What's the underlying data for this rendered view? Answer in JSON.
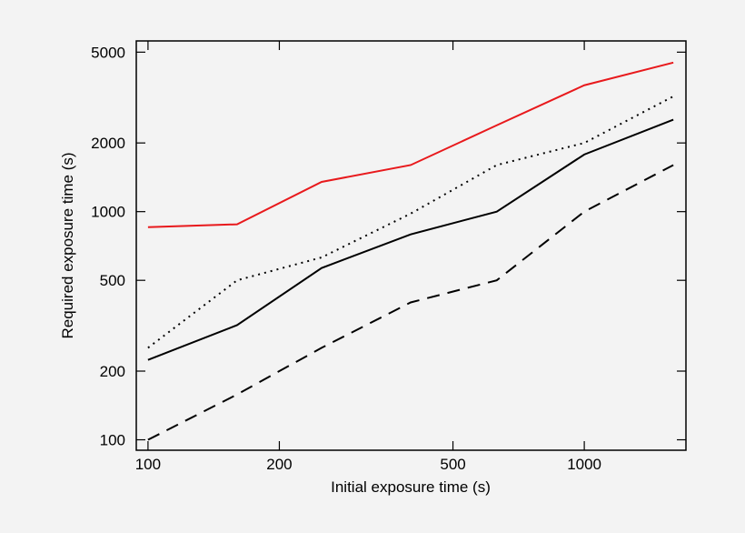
{
  "chart_data": {
    "type": "line",
    "x_label": "Initial exposure time (s)",
    "y_label": "Required exposure time (s)",
    "x": [
      100,
      160,
      250,
      400,
      630,
      1000,
      1600
    ],
    "series": [
      {
        "color": "#e8191c",
        "dash": "solid",
        "values": [
          855,
          880,
          1350,
          1600,
          2390,
          3580,
          4500
        ]
      },
      {
        "color": "#000000",
        "dash": "dotted",
        "values": [
          253,
          500,
          630,
          980,
          1600,
          2000,
          3200
        ]
      },
      {
        "color": "#000000",
        "dash": "solid",
        "values": [
          224,
          318,
          566,
          795,
          1000,
          1780,
          2530
        ]
      },
      {
        "color": "#000000",
        "dash": "dashed",
        "values": [
          100,
          158,
          253,
          400,
          500,
          1000,
          1600
        ]
      }
    ],
    "xlim": [
      94,
      1710
    ],
    "ylim": [
      90,
      5600
    ],
    "xticks": [
      100,
      200,
      500,
      1000
    ],
    "yticks": [
      100,
      200,
      500,
      1000,
      2000,
      5000
    ],
    "xscale": "log",
    "yscale": "log",
    "grid": false
  }
}
